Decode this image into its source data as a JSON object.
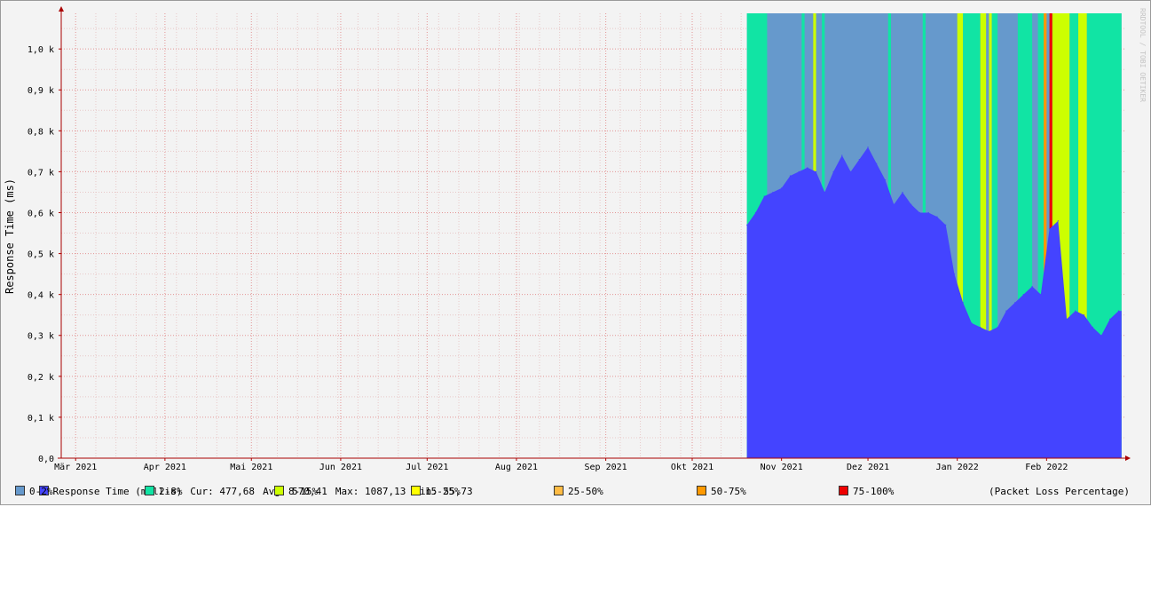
{
  "chart_data": {
    "type": "area",
    "ylabel": "Response Time (ms)",
    "watermark": "RRDTOOL / TOBI OETIKER",
    "ylim": [
      0,
      1087.13
    ],
    "y_ticks": [
      {
        "value": 0,
        "label": "0,0"
      },
      {
        "value": 100,
        "label": "0,1 k"
      },
      {
        "value": 200,
        "label": "0,2 k"
      },
      {
        "value": 300,
        "label": "0,3 k"
      },
      {
        "value": 400,
        "label": "0,4 k"
      },
      {
        "value": 500,
        "label": "0,5 k"
      },
      {
        "value": 600,
        "label": "0,6 k"
      },
      {
        "value": 700,
        "label": "0,7 k"
      },
      {
        "value": 800,
        "label": "0,8 k"
      },
      {
        "value": 900,
        "label": "0,9 k"
      },
      {
        "value": 1000,
        "label": "1,0 k"
      }
    ],
    "x_axis": {
      "start": "2021-02-24",
      "end": "2022-02-28"
    },
    "x_ticks": [
      {
        "date": "2021-03-01",
        "label": "Mär 2021"
      },
      {
        "date": "2021-04-01",
        "label": "Apr 2021"
      },
      {
        "date": "2021-05-01",
        "label": "Mai 2021"
      },
      {
        "date": "2021-06-01",
        "label": "Jun 2021"
      },
      {
        "date": "2021-07-01",
        "label": "Jul 2021"
      },
      {
        "date": "2021-08-01",
        "label": "Aug 2021"
      },
      {
        "date": "2021-09-01",
        "label": "Sep 2021"
      },
      {
        "date": "2021-10-01",
        "label": "Okt 2021"
      },
      {
        "date": "2021-11-01",
        "label": "Nov 2021"
      },
      {
        "date": "2021-12-01",
        "label": "Dez 2021"
      },
      {
        "date": "2022-01-01",
        "label": "Jan 2022"
      },
      {
        "date": "2022-02-01",
        "label": "Feb 2022"
      }
    ],
    "series": [
      {
        "name": "Response Time (millis)",
        "color": "#4444ff",
        "points": [
          [
            "2021-10-20",
            570
          ],
          [
            "2021-10-23",
            600
          ],
          [
            "2021-10-26",
            640
          ],
          [
            "2021-10-29",
            650
          ],
          [
            "2021-11-01",
            660
          ],
          [
            "2021-11-04",
            690
          ],
          [
            "2021-11-07",
            700
          ],
          [
            "2021-11-10",
            710
          ],
          [
            "2021-11-13",
            700
          ],
          [
            "2021-11-16",
            650
          ],
          [
            "2021-11-19",
            700
          ],
          [
            "2021-11-22",
            740
          ],
          [
            "2021-11-25",
            700
          ],
          [
            "2021-11-28",
            730
          ],
          [
            "2021-12-01",
            760
          ],
          [
            "2021-12-04",
            720
          ],
          [
            "2021-12-07",
            680
          ],
          [
            "2021-12-10",
            620
          ],
          [
            "2021-12-13",
            650
          ],
          [
            "2021-12-16",
            620
          ],
          [
            "2021-12-19",
            600
          ],
          [
            "2021-12-22",
            600
          ],
          [
            "2021-12-25",
            590
          ],
          [
            "2021-12-28",
            570
          ],
          [
            "2021-12-31",
            450
          ],
          [
            "2022-01-03",
            380
          ],
          [
            "2022-01-06",
            330
          ],
          [
            "2022-01-09",
            320
          ],
          [
            "2022-01-12",
            310
          ],
          [
            "2022-01-15",
            320
          ],
          [
            "2022-01-18",
            360
          ],
          [
            "2022-01-21",
            380
          ],
          [
            "2022-01-24",
            400
          ],
          [
            "2022-01-27",
            420
          ],
          [
            "2022-01-30",
            400
          ],
          [
            "2022-02-02",
            560
          ],
          [
            "2022-02-05",
            580
          ],
          [
            "2022-02-08",
            340
          ],
          [
            "2022-02-11",
            360
          ],
          [
            "2022-02-14",
            350
          ],
          [
            "2022-02-17",
            320
          ],
          [
            "2022-02-20",
            300
          ],
          [
            "2022-02-23",
            340
          ],
          [
            "2022-02-26",
            360
          ]
        ]
      }
    ],
    "loss_bands": [
      {
        "start": "2021-10-20",
        "end": "2021-10-27",
        "loss": "2-8%"
      },
      {
        "start": "2021-11-08",
        "end": "2021-11-09",
        "loss": "2-8%"
      },
      {
        "start": "2021-11-12",
        "end": "2021-11-13",
        "loss": "8-15%"
      },
      {
        "start": "2021-11-15",
        "end": "2021-11-16",
        "loss": "2-8%"
      },
      {
        "start": "2021-12-08",
        "end": "2021-12-09",
        "loss": "2-8%"
      },
      {
        "start": "2021-12-20",
        "end": "2021-12-21",
        "loss": "2-8%"
      },
      {
        "start": "2022-01-01",
        "end": "2022-01-03",
        "loss": "8-15%"
      },
      {
        "start": "2022-01-03",
        "end": "2022-01-09",
        "loss": "2-8%"
      },
      {
        "start": "2022-01-09",
        "end": "2022-01-11",
        "loss": "8-15%"
      },
      {
        "start": "2022-01-12",
        "end": "2022-01-13",
        "loss": "8-15%"
      },
      {
        "start": "2022-01-13",
        "end": "2022-01-15",
        "loss": "2-8%"
      },
      {
        "start": "2022-01-22",
        "end": "2022-01-27",
        "loss": "2-8%"
      },
      {
        "start": "2022-01-29",
        "end": "2022-01-31",
        "loss": "2-8%"
      },
      {
        "start": "2022-01-31",
        "end": "2022-02-01",
        "loss": "50-75%"
      },
      {
        "start": "2022-02-02",
        "end": "2022-02-03",
        "loss": "75-100%"
      },
      {
        "start": "2022-02-03",
        "end": "2022-02-09",
        "loss": "8-15%"
      },
      {
        "start": "2022-02-09",
        "end": "2022-02-12",
        "loss": "2-8%"
      },
      {
        "start": "2022-02-12",
        "end": "2022-02-15",
        "loss": "8-15%"
      },
      {
        "start": "2022-02-15",
        "end": "2022-02-27",
        "loss": "2-8%"
      }
    ],
    "loss_default": "0-2%",
    "data_start": "2021-10-20",
    "data_end": "2022-02-27",
    "grid": true
  },
  "stats": {
    "series_label": "Response Time (millis)",
    "cur": "Cur: 477,68",
    "avg": "Avg: 570,41",
    "max": "Max: 1087,13",
    "min": "Min: 55,73"
  },
  "legend": {
    "items": [
      {
        "label": "0-2%",
        "color": "#6699cc"
      },
      {
        "label": "2-8%",
        "color": "#11e4a4"
      },
      {
        "label": "8-15%",
        "color": "#ccff00"
      },
      {
        "label": "15-25%",
        "color": "#ffff00"
      },
      {
        "label": "25-50%",
        "color": "#ffbb44"
      },
      {
        "label": "50-75%",
        "color": "#ff9900"
      },
      {
        "label": "75-100%",
        "color": "#ee0000"
      }
    ],
    "note": "(Packet Loss Percentage)"
  },
  "colors": {
    "response": "#4444ff",
    "grid_major": "#e39595",
    "grid_minor": "#e8c8c8",
    "axis": "#aa0000"
  }
}
